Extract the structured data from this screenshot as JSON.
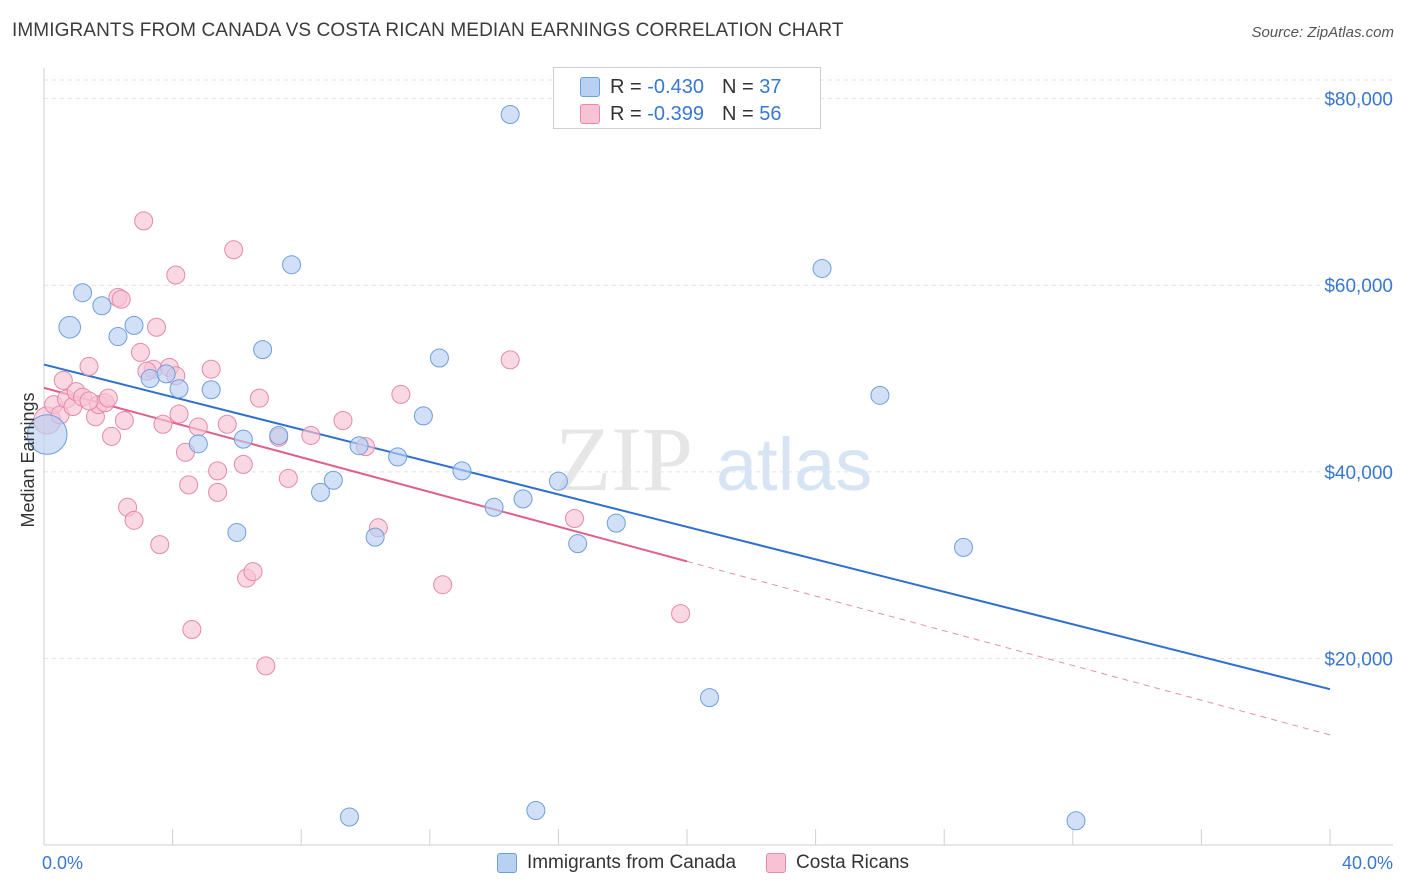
{
  "title": "IMMIGRANTS FROM CANADA VS COSTA RICAN MEDIAN EARNINGS CORRELATION CHART",
  "source": "Source: ZipAtlas.com",
  "colors": {
    "blue_fill": "#b8d0f2",
    "blue_stroke": "#6e9fdd",
    "blue_line": "#2f6fd0",
    "pink_fill": "#f7c3d4",
    "pink_stroke": "#e58aa9",
    "pink_line": "#e0608a",
    "accent_text": "#3878d0",
    "grid": "#e2e2e2"
  },
  "stats": [
    {
      "r_label": "R =",
      "r_value": "-0.430",
      "n_label": "N =",
      "n_value": "37"
    },
    {
      "r_label": "R =",
      "r_value": "-0.399",
      "n_label": "N =",
      "n_value": "56"
    }
  ],
  "chart_data": {
    "type": "scatter",
    "title": "IMMIGRANTS FROM CANADA VS COSTA RICAN MEDIAN EARNINGS CORRELATION CHART",
    "xlabel": "",
    "ylabel": "Median Earnings",
    "xlim": [
      0,
      40
    ],
    "ylim": [
      0,
      82000
    ],
    "x_tick_labels": [
      "0.0%",
      "40.0%"
    ],
    "y_ticks": [
      20000,
      40000,
      60000,
      80000
    ],
    "y_tick_labels": [
      "$20,000",
      "$40,000",
      "$60,000",
      "$80,000"
    ],
    "grid": true,
    "watermark": {
      "zip": "ZIP",
      "atlas": "atlas"
    },
    "series": [
      {
        "name": "Immigrants from Canada",
        "color_key": "blue",
        "points": [
          [
            0.1,
            44000,
            2.2
          ],
          [
            1.2,
            59200,
            1
          ],
          [
            1.8,
            57800,
            1
          ],
          [
            0.8,
            55500,
            1.2
          ],
          [
            2.3,
            54500,
            1
          ],
          [
            2.8,
            55700,
            1
          ],
          [
            3.3,
            50000,
            1
          ],
          [
            3.8,
            50500,
            1
          ],
          [
            4.2,
            48900,
            1
          ],
          [
            5.2,
            48800,
            1
          ],
          [
            4.8,
            43000,
            1
          ],
          [
            6.8,
            53100,
            1
          ],
          [
            7.7,
            62200,
            1
          ],
          [
            6.2,
            43500,
            1
          ],
          [
            7.3,
            43900,
            1
          ],
          [
            8.6,
            37800,
            1
          ],
          [
            9.0,
            39100,
            1
          ],
          [
            9.8,
            42800,
            1
          ],
          [
            10.3,
            33000,
            1
          ],
          [
            11.0,
            41600,
            1
          ],
          [
            11.8,
            46000,
            1
          ],
          [
            12.3,
            52200,
            1
          ],
          [
            13.0,
            40100,
            1
          ],
          [
            14.0,
            36200,
            1
          ],
          [
            14.5,
            78300,
            1
          ],
          [
            14.9,
            37100,
            1
          ],
          [
            16.0,
            39000,
            1
          ],
          [
            16.6,
            32300,
            1
          ],
          [
            17.8,
            34500,
            1
          ],
          [
            20.7,
            15800,
            1
          ],
          [
            24.2,
            61800,
            1
          ],
          [
            26.0,
            48200,
            1
          ],
          [
            28.6,
            31900,
            1
          ],
          [
            6.0,
            33500,
            1
          ],
          [
            9.5,
            3000,
            1
          ],
          [
            15.3,
            3700,
            1
          ],
          [
            32.1,
            2600,
            1
          ]
        ]
      },
      {
        "name": "Costa Ricans",
        "color_key": "pink",
        "points": [
          [
            0.1,
            45500,
            1.5
          ],
          [
            0.3,
            47200,
            1
          ],
          [
            0.5,
            46100,
            1
          ],
          [
            0.6,
            49800,
            1
          ],
          [
            0.7,
            47800,
            1
          ],
          [
            0.9,
            47000,
            1
          ],
          [
            1.0,
            48600,
            1
          ],
          [
            1.2,
            48000,
            1
          ],
          [
            1.4,
            51300,
            1
          ],
          [
            1.6,
            45900,
            1
          ],
          [
            1.7,
            47200,
            1
          ],
          [
            1.9,
            47400,
            1
          ],
          [
            2.0,
            47900,
            1
          ],
          [
            2.1,
            43800,
            1
          ],
          [
            2.3,
            58700,
            1
          ],
          [
            2.5,
            45500,
            1
          ],
          [
            2.6,
            36200,
            1
          ],
          [
            2.8,
            34800,
            1
          ],
          [
            3.0,
            52800,
            1
          ],
          [
            3.1,
            66900,
            1
          ],
          [
            3.4,
            51000,
            1
          ],
          [
            3.5,
            55500,
            1
          ],
          [
            3.6,
            32200,
            1
          ],
          [
            3.7,
            45100,
            1
          ],
          [
            3.9,
            51200,
            1
          ],
          [
            4.1,
            50300,
            1
          ],
          [
            4.2,
            46200,
            1
          ],
          [
            4.4,
            42100,
            1
          ],
          [
            4.5,
            38600,
            1
          ],
          [
            4.6,
            23100,
            1
          ],
          [
            4.8,
            44800,
            1
          ],
          [
            5.2,
            51000,
            1
          ],
          [
            5.4,
            40100,
            1
          ],
          [
            5.4,
            37800,
            1
          ],
          [
            5.7,
            45100,
            1
          ],
          [
            5.9,
            63800,
            1
          ],
          [
            6.2,
            40800,
            1
          ],
          [
            6.3,
            28600,
            1
          ],
          [
            6.5,
            29300,
            1
          ],
          [
            6.7,
            47900,
            1
          ],
          [
            6.9,
            19200,
            1
          ],
          [
            7.6,
            39300,
            1
          ],
          [
            8.3,
            43900,
            1
          ],
          [
            9.3,
            45500,
            1
          ],
          [
            10.0,
            42700,
            1
          ],
          [
            10.4,
            34000,
            1
          ],
          [
            11.1,
            48300,
            1
          ],
          [
            12.4,
            27900,
            1
          ],
          [
            14.5,
            52000,
            1
          ],
          [
            16.5,
            35000,
            1
          ],
          [
            19.8,
            24800,
            1
          ],
          [
            4.1,
            61100,
            1
          ],
          [
            7.3,
            43700,
            1
          ],
          [
            1.4,
            47600,
            1
          ],
          [
            2.4,
            58500,
            1
          ],
          [
            3.2,
            50800,
            1
          ]
        ]
      }
    ],
    "trend_lines": [
      {
        "series": "Immigrants from Canada",
        "x0": 0,
        "y0": 51500,
        "x1": 40,
        "y1": 16700,
        "solid_until": 40
      },
      {
        "series": "Costa Ricans",
        "x0": 0,
        "y0": 49000,
        "x1": 40,
        "y1": 11800,
        "solid_until": 20
      }
    ]
  },
  "legend": [
    {
      "label": "Immigrants from Canada",
      "color_key": "blue"
    },
    {
      "label": "Costa Ricans",
      "color_key": "pink"
    }
  ]
}
